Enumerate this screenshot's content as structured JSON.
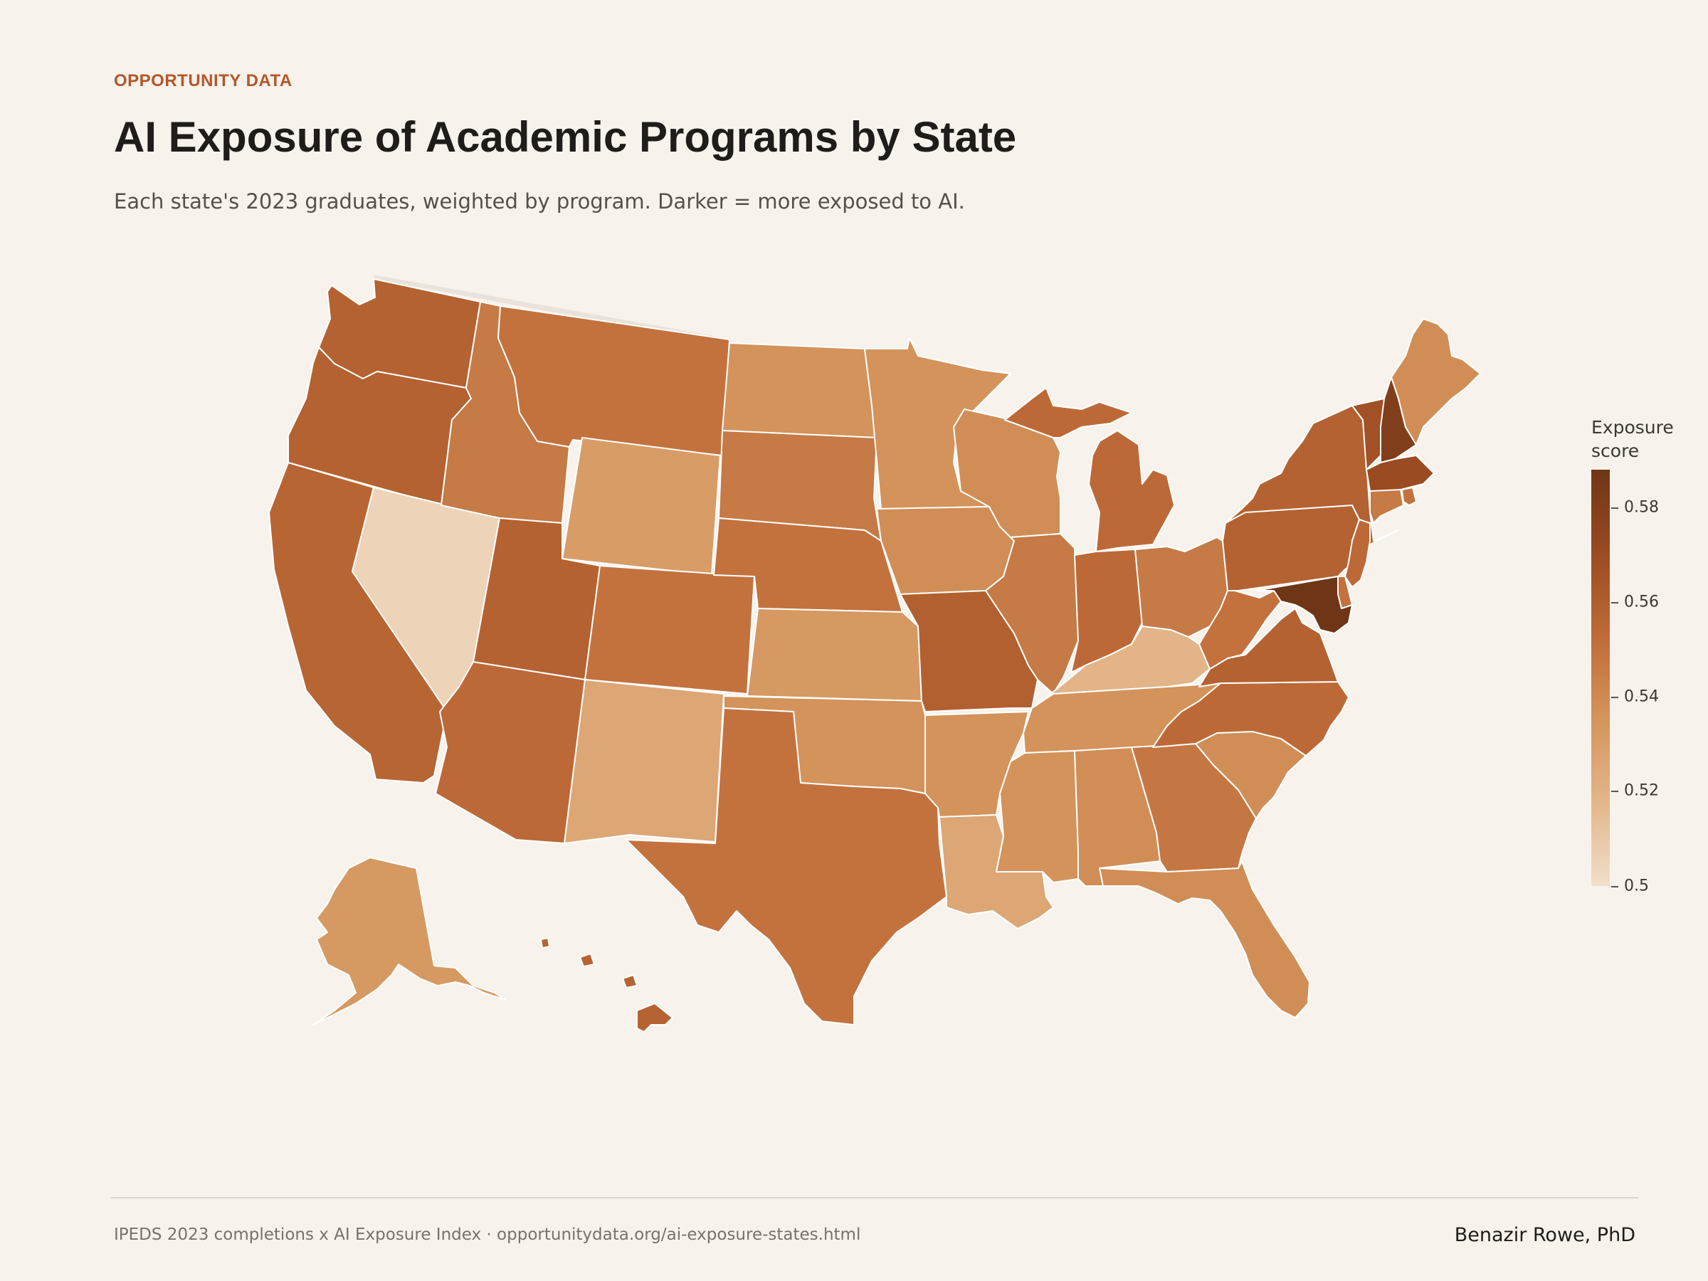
{
  "header": {
    "eyebrow": "OPPORTUNITY DATA",
    "title": "AI Exposure of Academic Programs by State",
    "subtitle": "Each state's 2023 graduates, weighted by program. Darker = more exposed to AI."
  },
  "legend": {
    "title": "Exposure score",
    "ticks": [
      "0.58",
      "0.56",
      "0.54",
      "0.52",
      "0.5"
    ],
    "colors": [
      "#6f3517",
      "#9a4b21",
      "#bf6b38",
      "#d4955c",
      "#e3b68b",
      "#f1dfcb"
    ]
  },
  "footer": {
    "source": "IPEDS 2023 completions  x  AI Exposure Index  ·  opportunitydata.org/ai-exposure-states.html",
    "author": "Benazir Rowe, PhD"
  },
  "map_data": {
    "type": "choropleth",
    "region": "United States",
    "value_label": "Exposure score",
    "scale_range": [
      0.5,
      0.585
    ],
    "states": [
      {
        "state": "WA",
        "value": 0.556
      },
      {
        "state": "OR",
        "value": 0.556
      },
      {
        "state": "CA",
        "value": 0.554
      },
      {
        "state": "NV",
        "value": 0.505
      },
      {
        "state": "ID",
        "value": 0.545
      },
      {
        "state": "MT",
        "value": 0.548
      },
      {
        "state": "WY",
        "value": 0.53
      },
      {
        "state": "UT",
        "value": 0.556
      },
      {
        "state": "AZ",
        "value": 0.552
      },
      {
        "state": "CO",
        "value": 0.548
      },
      {
        "state": "NM",
        "value": 0.525
      },
      {
        "state": "ND",
        "value": 0.535
      },
      {
        "state": "SD",
        "value": 0.545
      },
      {
        "state": "NE",
        "value": 0.548
      },
      {
        "state": "KS",
        "value": 0.532
      },
      {
        "state": "OK",
        "value": 0.535
      },
      {
        "state": "TX",
        "value": 0.548
      },
      {
        "state": "MN",
        "value": 0.535
      },
      {
        "state": "IA",
        "value": 0.537
      },
      {
        "state": "MO",
        "value": 0.557
      },
      {
        "state": "AR",
        "value": 0.535
      },
      {
        "state": "LA",
        "value": 0.525
      },
      {
        "state": "WI",
        "value": 0.537
      },
      {
        "state": "IL",
        "value": 0.545
      },
      {
        "state": "MI",
        "value": 0.552
      },
      {
        "state": "IN",
        "value": 0.552
      },
      {
        "state": "OH",
        "value": 0.545
      },
      {
        "state": "KY",
        "value": 0.518
      },
      {
        "state": "TN",
        "value": 0.535
      },
      {
        "state": "MS",
        "value": 0.535
      },
      {
        "state": "AL",
        "value": 0.537
      },
      {
        "state": "GA",
        "value": 0.546
      },
      {
        "state": "FL",
        "value": 0.537
      },
      {
        "state": "SC",
        "value": 0.537
      },
      {
        "state": "NC",
        "value": 0.552
      },
      {
        "state": "VA",
        "value": 0.556
      },
      {
        "state": "WV",
        "value": 0.548
      },
      {
        "state": "PA",
        "value": 0.556
      },
      {
        "state": "NY",
        "value": 0.556
      },
      {
        "state": "VT",
        "value": 0.565
      },
      {
        "state": "NH",
        "value": 0.578
      },
      {
        "state": "ME",
        "value": 0.537
      },
      {
        "state": "MA",
        "value": 0.568
      },
      {
        "state": "RI",
        "value": 0.548
      },
      {
        "state": "CT",
        "value": 0.545
      },
      {
        "state": "NJ",
        "value": 0.552
      },
      {
        "state": "DE",
        "value": 0.548
      },
      {
        "state": "MD",
        "value": 0.585
      },
      {
        "state": "AK",
        "value": 0.532
      },
      {
        "state": "HI",
        "value": 0.555
      }
    ]
  }
}
